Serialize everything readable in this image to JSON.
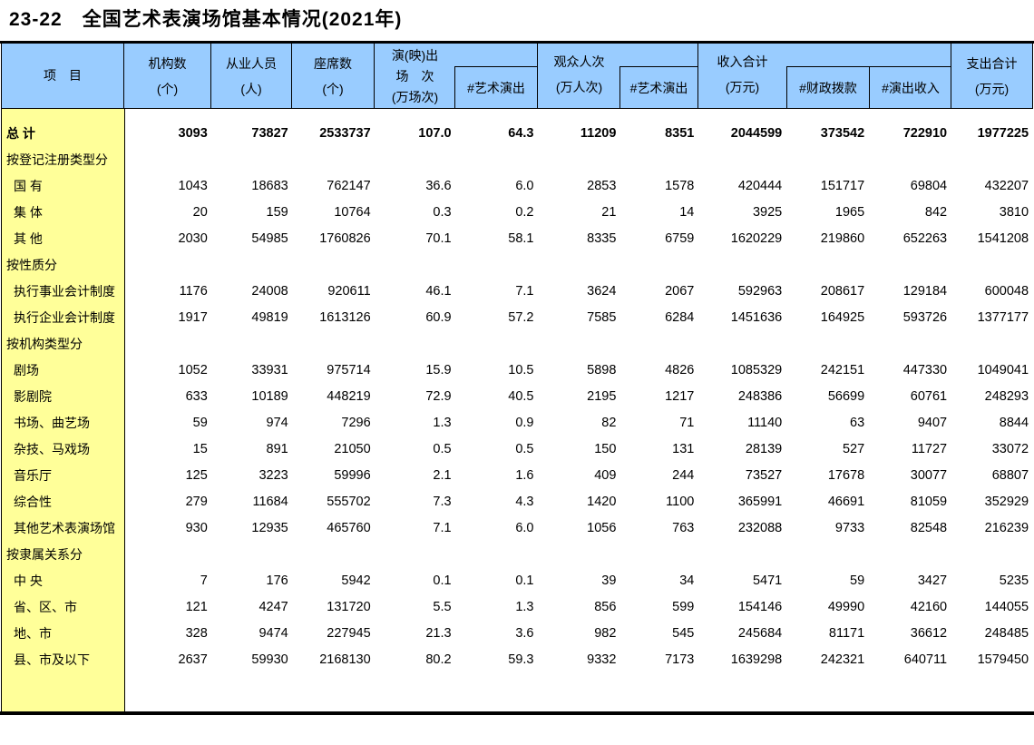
{
  "title": "23-22　全国艺术表演场馆基本情况(2021年)",
  "colors": {
    "header_bg": "#99CCFF",
    "item_column_bg": "#FFFF99",
    "border": "#000000"
  },
  "header": {
    "item": "项　目",
    "org_count": {
      "l1": "机构数",
      "l2": "(个)"
    },
    "employees": {
      "l1": "从业人员",
      "l2": "(人)"
    },
    "seats": {
      "l1": "座席数",
      "l2": "(个)"
    },
    "performances": {
      "l1": "演(映)出",
      "l2": "场　次",
      "l3": "(万场次)",
      "sub": "#艺术演出"
    },
    "audience": {
      "l1": "观众人次",
      "l2": "(万人次)",
      "sub": "#艺术演出"
    },
    "income": {
      "l1": "收入合计",
      "l2": "(万元)",
      "sub1": "#财政拨款",
      "sub2": "#演出收入"
    },
    "expenditure": {
      "l1": "支出合计",
      "l2": "(万元)"
    }
  },
  "table": {
    "rows": [
      {
        "type": "total",
        "label": "总 计",
        "values": [
          "3093",
          "73827",
          "2533737",
          "107.0",
          "64.3",
          "11209",
          "8351",
          "2044599",
          "373542",
          "722910",
          "1977225"
        ]
      },
      {
        "type": "section",
        "label": "按登记注册类型分",
        "values": []
      },
      {
        "type": "data",
        "label": "国 有",
        "values": [
          "1043",
          "18683",
          "762147",
          "36.6",
          "6.0",
          "2853",
          "1578",
          "420444",
          "151717",
          "69804",
          "432207"
        ]
      },
      {
        "type": "data",
        "label": "集 体",
        "values": [
          "20",
          "159",
          "10764",
          "0.3",
          "0.2",
          "21",
          "14",
          "3925",
          "1965",
          "842",
          "3810"
        ]
      },
      {
        "type": "data",
        "label": "其 他",
        "values": [
          "2030",
          "54985",
          "1760826",
          "70.1",
          "58.1",
          "8335",
          "6759",
          "1620229",
          "219860",
          "652263",
          "1541208"
        ]
      },
      {
        "type": "section",
        "label": "按性质分",
        "values": []
      },
      {
        "type": "data",
        "label": "执行事业会计制度",
        "values": [
          "1176",
          "24008",
          "920611",
          "46.1",
          "7.1",
          "3624",
          "2067",
          "592963",
          "208617",
          "129184",
          "600048"
        ]
      },
      {
        "type": "data",
        "label": "执行企业会计制度",
        "values": [
          "1917",
          "49819",
          "1613126",
          "60.9",
          "57.2",
          "7585",
          "6284",
          "1451636",
          "164925",
          "593726",
          "1377177"
        ]
      },
      {
        "type": "section",
        "label": "按机构类型分",
        "values": []
      },
      {
        "type": "data",
        "label": "剧场",
        "values": [
          "1052",
          "33931",
          "975714",
          "15.9",
          "10.5",
          "5898",
          "4826",
          "1085329",
          "242151",
          "447330",
          "1049041"
        ]
      },
      {
        "type": "data",
        "label": "影剧院",
        "values": [
          "633",
          "10189",
          "448219",
          "72.9",
          "40.5",
          "2195",
          "1217",
          "248386",
          "56699",
          "60761",
          "248293"
        ]
      },
      {
        "type": "data",
        "label": "书场、曲艺场",
        "values": [
          "59",
          "974",
          "7296",
          "1.3",
          "0.9",
          "82",
          "71",
          "11140",
          "63",
          "9407",
          "8844"
        ]
      },
      {
        "type": "data",
        "label": "杂技、马戏场",
        "values": [
          "15",
          "891",
          "21050",
          "0.5",
          "0.5",
          "150",
          "131",
          "28139",
          "527",
          "11727",
          "33072"
        ]
      },
      {
        "type": "data",
        "label": "音乐厅",
        "values": [
          "125",
          "3223",
          "59996",
          "2.1",
          "1.6",
          "409",
          "244",
          "73527",
          "17678",
          "30077",
          "68807"
        ]
      },
      {
        "type": "data",
        "label": "综合性",
        "values": [
          "279",
          "11684",
          "555702",
          "7.3",
          "4.3",
          "1420",
          "1100",
          "365991",
          "46691",
          "81059",
          "352929"
        ]
      },
      {
        "type": "data",
        "label": "其他艺术表演场馆",
        "values": [
          "930",
          "12935",
          "465760",
          "7.1",
          "6.0",
          "1056",
          "763",
          "232088",
          "9733",
          "82548",
          "216239"
        ]
      },
      {
        "type": "section",
        "label": "按隶属关系分",
        "values": []
      },
      {
        "type": "data",
        "label": "中 央",
        "values": [
          "7",
          "176",
          "5942",
          "0.1",
          "0.1",
          "39",
          "34",
          "5471",
          "59",
          "3427",
          "5235"
        ]
      },
      {
        "type": "data",
        "label": "省、区、市",
        "values": [
          "121",
          "4247",
          "131720",
          "5.5",
          "1.3",
          "856",
          "599",
          "154146",
          "49990",
          "42160",
          "144055"
        ]
      },
      {
        "type": "data",
        "label": "地、市",
        "values": [
          "328",
          "9474",
          "227945",
          "21.3",
          "3.6",
          "982",
          "545",
          "245684",
          "81171",
          "36612",
          "248485"
        ]
      },
      {
        "type": "data",
        "label": "县、市及以下",
        "values": [
          "2637",
          "59930",
          "2168130",
          "80.2",
          "59.3",
          "9332",
          "7173",
          "1639298",
          "242321",
          "640711",
          "1579450"
        ]
      }
    ]
  }
}
